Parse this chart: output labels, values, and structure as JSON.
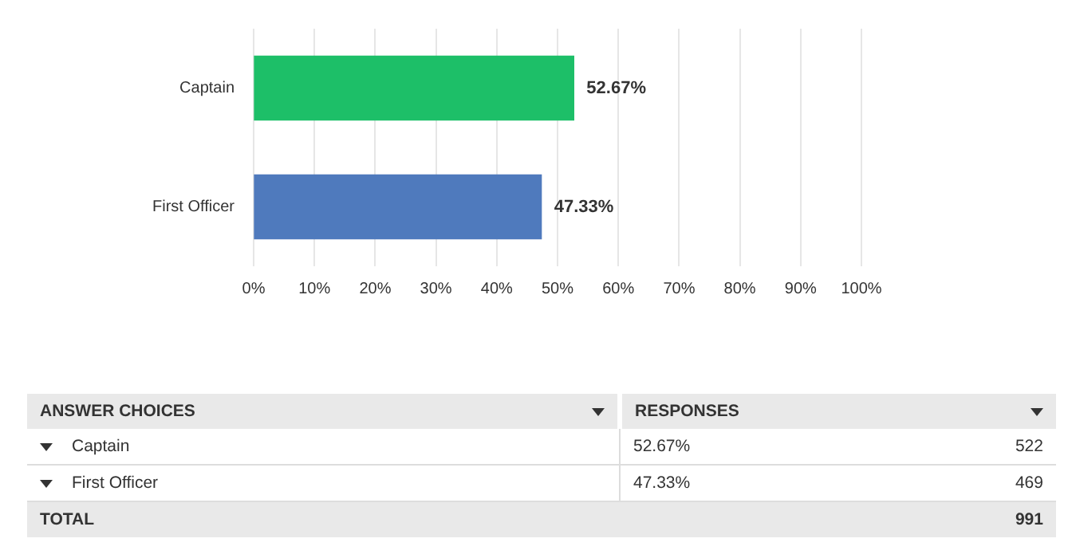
{
  "chart_data": [
    {
      "type": "bar",
      "orientation": "horizontal",
      "categories": [
        "Captain",
        "First Officer"
      ],
      "values": [
        52.67,
        47.33
      ],
      "colors": [
        "#1dbf68",
        "#4f7abd"
      ],
      "value_labels": [
        "52.67%",
        "47.33%"
      ],
      "xlim": [
        0,
        100
      ],
      "xticks": [
        {
          "value": 0,
          "label": "0%"
        },
        {
          "value": 10,
          "label": "10%"
        },
        {
          "value": 20,
          "label": "20%"
        },
        {
          "value": 30,
          "label": "30%"
        },
        {
          "value": 40,
          "label": "40%"
        },
        {
          "value": 50,
          "label": "50%"
        },
        {
          "value": 60,
          "label": "60%"
        },
        {
          "value": 70,
          "label": "70%"
        },
        {
          "value": 80,
          "label": "80%"
        },
        {
          "value": 90,
          "label": "90%"
        },
        {
          "value": 100,
          "label": "100%"
        }
      ],
      "grid": "x",
      "legend": false
    },
    {
      "type": "other",
      "xlabel": "ANSWER CHOICES",
      "ylabel": "RESPONSES",
      "categories": [
        "Captain",
        "First Officer"
      ],
      "annotations": [
        "52.67%",
        "522",
        "47.33%",
        "469",
        "TOTAL",
        "991"
      ]
    }
  ]
}
